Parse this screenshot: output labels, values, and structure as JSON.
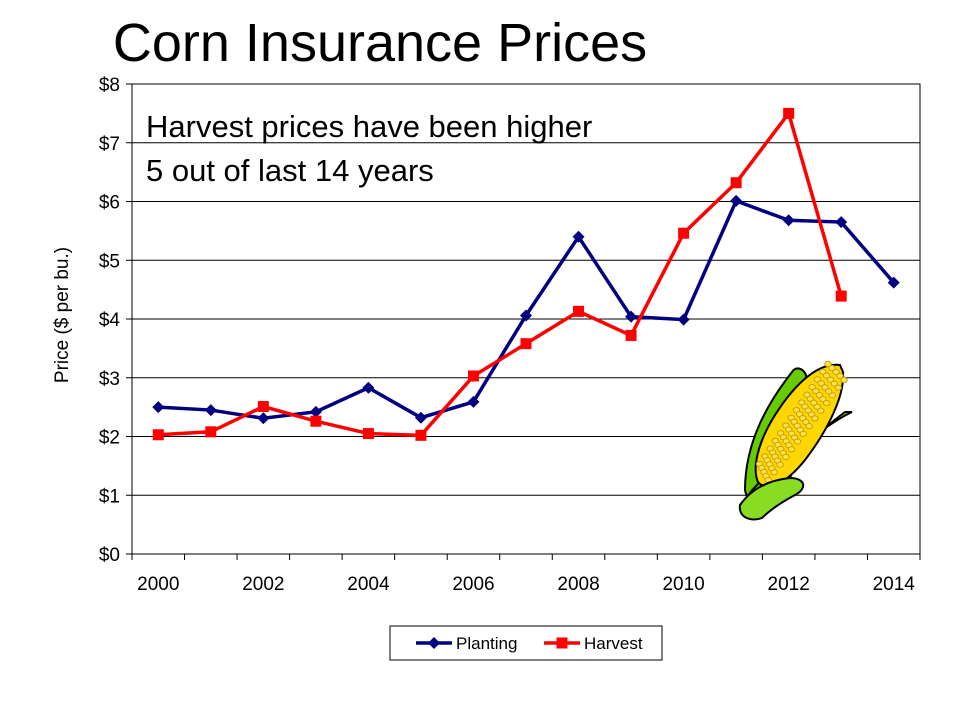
{
  "chart_data": {
    "type": "line",
    "title": "Corn Insurance Prices",
    "ylabel": "Price ($ per bu.)",
    "xlabel": "",
    "ylim": [
      0,
      8
    ],
    "yticks": [
      "$0",
      "$1",
      "$2",
      "$3",
      "$4",
      "$5",
      "$6",
      "$7",
      "$8"
    ],
    "xticks": [
      "2000",
      "2002",
      "2004",
      "2006",
      "2008",
      "2010",
      "2012",
      "2014"
    ],
    "x": [
      2000,
      2001,
      2002,
      2003,
      2004,
      2005,
      2006,
      2007,
      2008,
      2009,
      2010,
      2011,
      2012,
      2013,
      2014
    ],
    "grid": "horizontal",
    "legend_position": "bottom",
    "annotation": [
      "Harvest prices have been higher",
      "5 out of last 14 years"
    ],
    "series": [
      {
        "name": "Planting",
        "color": "#000080",
        "marker": "diamond",
        "values": [
          2.5,
          2.45,
          2.31,
          2.42,
          2.83,
          2.32,
          2.59,
          4.06,
          5.4,
          4.04,
          3.99,
          6.01,
          5.68,
          5.65,
          4.62
        ]
      },
      {
        "name": "Harvest",
        "color": "#ff0000",
        "marker": "square",
        "values": [
          2.03,
          2.08,
          2.51,
          2.26,
          2.05,
          2.02,
          3.03,
          3.58,
          4.13,
          3.72,
          5.46,
          6.32,
          7.5,
          4.39,
          null
        ]
      }
    ]
  },
  "decoration": {
    "image": "corn-cob-icon"
  }
}
